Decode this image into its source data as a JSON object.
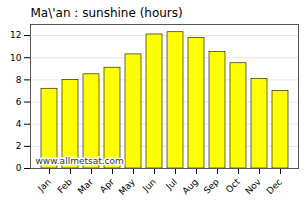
{
  "chart_data": {
    "type": "bar",
    "title": "Ma\\'an : sunshine (hours)",
    "categories": [
      "Jan",
      "Feb",
      "Mar",
      "Apr",
      "May",
      "Jun",
      "Jul",
      "Aug",
      "Sep",
      "Oct",
      "Nov",
      "Dec"
    ],
    "values": [
      7.2,
      8.0,
      8.5,
      9.1,
      10.3,
      12.1,
      12.3,
      11.8,
      10.5,
      9.5,
      8.1,
      7.0
    ],
    "color": "#FFFF00",
    "ylim": [
      0,
      13
    ],
    "yticks": [
      0,
      2,
      4,
      6,
      8,
      10,
      12
    ],
    "grid": true,
    "annotations": [
      "www.allmetsat.com"
    ]
  }
}
